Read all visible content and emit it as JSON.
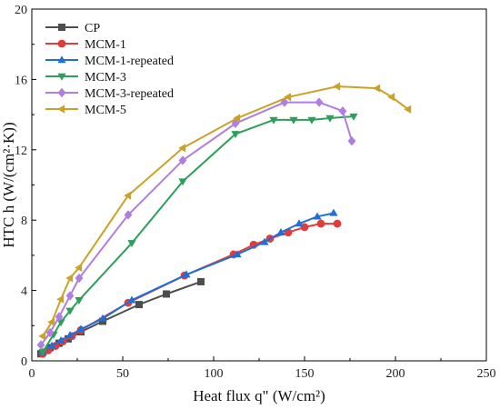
{
  "chart_data": {
    "type": "line",
    "title": "",
    "xlabel": "Heat flux q\" (W/cm²)",
    "ylabel": "HTC h (W/(cm²·K))",
    "xlim": [
      0,
      250
    ],
    "ylim": [
      0,
      20
    ],
    "xticks": [
      0,
      50,
      100,
      150,
      200,
      250
    ],
    "yticks": [
      0,
      4,
      8,
      12,
      16,
      20
    ],
    "grid": false,
    "legend_position": "top-left",
    "series": [
      {
        "name": "CP",
        "color": "#4d4d4d",
        "marker": "square",
        "points": [
          [
            5,
            0.4
          ],
          [
            10,
            0.75
          ],
          [
            15,
            1.0
          ],
          [
            20,
            1.25
          ],
          [
            27,
            1.65
          ],
          [
            39,
            2.25
          ],
          [
            59,
            3.2
          ],
          [
            74,
            3.8
          ],
          [
            93,
            4.5
          ]
        ]
      },
      {
        "name": "MCM-1",
        "color": "#e03c3c",
        "marker": "circle",
        "points": [
          [
            6,
            0.4
          ],
          [
            9,
            0.6
          ],
          [
            13,
            0.85
          ],
          [
            17,
            1.1
          ],
          [
            22,
            1.4
          ],
          [
            27,
            1.75
          ],
          [
            53,
            3.3
          ],
          [
            84,
            4.85
          ],
          [
            111,
            6.05
          ],
          [
            122,
            6.6
          ],
          [
            131,
            6.95
          ],
          [
            141,
            7.3
          ],
          [
            150,
            7.6
          ],
          [
            159,
            7.8
          ],
          [
            168,
            7.8
          ]
        ]
      },
      {
        "name": "MCM-1-repeated",
        "color": "#1f6fd6",
        "marker": "triangle-up",
        "points": [
          [
            6,
            0.5
          ],
          [
            11,
            0.85
          ],
          [
            16,
            1.15
          ],
          [
            21,
            1.45
          ],
          [
            27,
            1.8
          ],
          [
            39,
            2.4
          ],
          [
            55,
            3.45
          ],
          [
            85,
            4.9
          ],
          [
            113,
            6.05
          ],
          [
            128,
            6.75
          ],
          [
            137,
            7.3
          ],
          [
            147,
            7.8
          ],
          [
            157,
            8.2
          ],
          [
            166,
            8.4
          ]
        ]
      },
      {
        "name": "MCM-3",
        "color": "#2e9e5b",
        "marker": "triangle-down",
        "points": [
          [
            6,
            0.5
          ],
          [
            12,
            1.5
          ],
          [
            16,
            2.2
          ],
          [
            21,
            2.85
          ],
          [
            26,
            3.45
          ],
          [
            55,
            6.7
          ],
          [
            83,
            10.2
          ],
          [
            112,
            12.9
          ],
          [
            133,
            13.7
          ],
          [
            144,
            13.7
          ],
          [
            154,
            13.7
          ],
          [
            164,
            13.8
          ],
          [
            177,
            13.9
          ]
        ]
      },
      {
        "name": "MCM-3-repeated",
        "color": "#b07de0",
        "marker": "diamond",
        "points": [
          [
            5,
            0.9
          ],
          [
            10,
            1.6
          ],
          [
            15,
            2.5
          ],
          [
            21,
            3.7
          ],
          [
            26,
            4.7
          ],
          [
            53,
            8.3
          ],
          [
            83,
            11.4
          ],
          [
            112,
            13.5
          ],
          [
            139,
            14.7
          ],
          [
            158,
            14.7
          ],
          [
            171,
            14.2
          ],
          [
            176,
            12.5
          ]
        ]
      },
      {
        "name": "MCM-5",
        "color": "#c9a227",
        "marker": "triangle-left",
        "points": [
          [
            6,
            1.4
          ],
          [
            11,
            2.2
          ],
          [
            16,
            3.5
          ],
          [
            21,
            4.7
          ],
          [
            26,
            5.3
          ],
          [
            53,
            9.4
          ],
          [
            83,
            12.1
          ],
          [
            113,
            13.8
          ],
          [
            141,
            15.0
          ],
          [
            168,
            15.6
          ],
          [
            190,
            15.5
          ],
          [
            198,
            15.0
          ],
          [
            207,
            14.3
          ]
        ]
      }
    ]
  }
}
